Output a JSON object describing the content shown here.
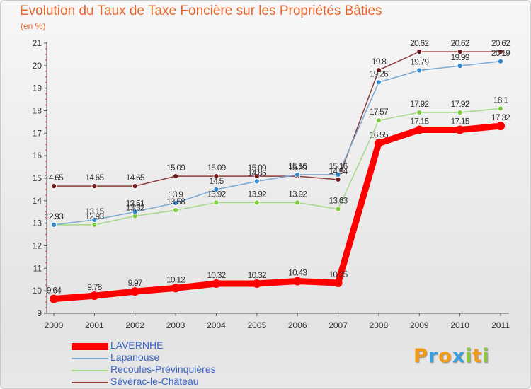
{
  "title": "Evolution du Taux de Taxe Foncière sur les Propriétés Bâties",
  "unit_label": "(en %)",
  "logo": {
    "letters": [
      "P",
      "r",
      "o",
      "x",
      "i",
      "t",
      "i"
    ],
    "colors": [
      "#f09a16",
      "#3aa0dc",
      "#f09a16",
      "#3aa0dc",
      "#8cc63f",
      "#f09a16",
      "#8cc63f"
    ]
  },
  "chart_data": {
    "type": "line",
    "x": [
      "2000",
      "2001",
      "2002",
      "2003",
      "2004",
      "2005",
      "2006",
      "2007",
      "2008",
      "2009",
      "2010",
      "2011"
    ],
    "ylim": [
      9,
      21
    ],
    "yticks": [
      "9",
      "10",
      "11",
      "12",
      "13",
      "14",
      "15",
      "16",
      "17",
      "18",
      "19",
      "20",
      "21"
    ],
    "grid": false,
    "legend_position": "bottom-left",
    "series": [
      {
        "name": "LAVERNHE",
        "color": "#ff0000",
        "marker_color": "#ff0000",
        "values": [
          9.64,
          9.78,
          9.97,
          10.12,
          10.32,
          10.32,
          10.43,
          10.35,
          16.55,
          17.15,
          17.15,
          17.32
        ],
        "labels": [
          "9.64",
          "9.78",
          "9.97",
          "10.12",
          "10.32",
          "10.32",
          "10.43",
          "10.35",
          "16.55",
          "17.15",
          "17.15",
          "17.32"
        ]
      },
      {
        "name": "Lapanouse",
        "color": "#79a8d2",
        "marker_color": "#2f86cc",
        "values": [
          12.93,
          13.15,
          13.51,
          13.9,
          14.5,
          14.86,
          15.16,
          15.16,
          19.26,
          19.79,
          19.99,
          20.19
        ],
        "labels": [
          "12.93",
          "13.15",
          "13.51",
          "13.9",
          "14.5",
          "14.86",
          "15.16",
          "15.16",
          "19.26",
          "19.79",
          "19.99",
          "20.19"
        ]
      },
      {
        "name": "Recoules-Prévinquières",
        "color": "#a6d88a",
        "marker_color": "#7ccc3a",
        "values": [
          12.93,
          12.93,
          13.32,
          13.58,
          13.92,
          13.92,
          13.92,
          13.63,
          17.57,
          17.92,
          17.92,
          18.1
        ],
        "labels": [
          "12.93",
          "12.93",
          "13.32",
          "13.58",
          "13.92",
          "13.92",
          "13.92",
          "13.63",
          "17.57",
          "17.92",
          "17.92",
          "18.1"
        ]
      },
      {
        "name": "Sévérac-le-Château",
        "color": "#8a3a3a",
        "marker_color": "#6e1a1a",
        "values": [
          14.65,
          14.65,
          14.65,
          15.09,
          15.09,
          15.09,
          15.09,
          14.94,
          19.8,
          20.62,
          20.62,
          20.62
        ],
        "labels": [
          "14.65",
          "14.65",
          "14.65",
          "15.09",
          "15.09",
          "15.09",
          "15.09",
          "14.94",
          "19.8",
          "20.62",
          "20.62",
          "20.62"
        ]
      }
    ]
  }
}
